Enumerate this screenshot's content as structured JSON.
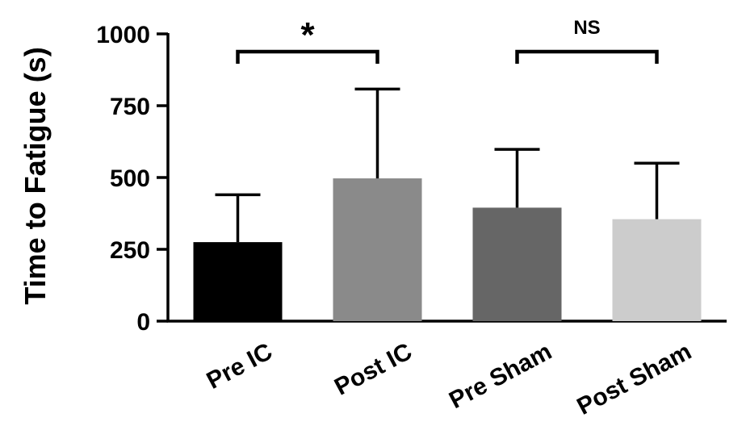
{
  "chart_data": {
    "type": "bar",
    "title": "",
    "xlabel": "",
    "ylabel": "Time to Fatigue (s)",
    "ylim": [
      0,
      1000
    ],
    "yticks": [
      0,
      250,
      500,
      750,
      1000
    ],
    "grid": false,
    "categories": [
      "Pre IC",
      "Post IC",
      "Pre Sham",
      "Post Sham"
    ],
    "values": [
      275,
      497,
      395,
      355
    ],
    "error_upper": [
      440,
      808,
      598,
      550
    ],
    "bar_colors": [
      "#000000",
      "#8a8a8a",
      "#666666",
      "#cccccc"
    ],
    "annotations": [
      {
        "label": "*",
        "from": "Pre IC",
        "to": "Post IC"
      },
      {
        "label": "NS",
        "from": "Pre Sham",
        "to": "Post Sham"
      }
    ]
  }
}
